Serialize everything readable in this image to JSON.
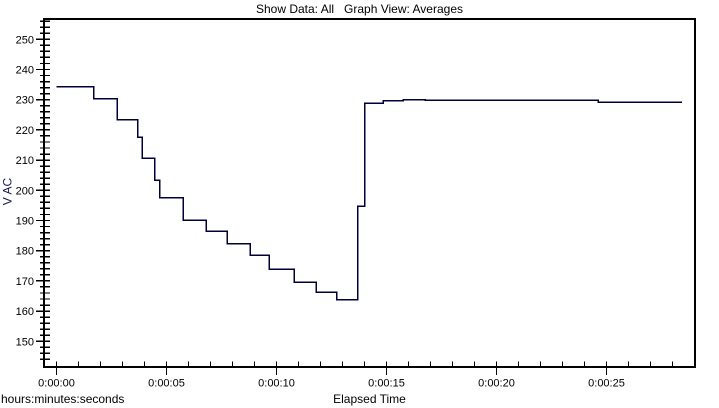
{
  "title": "Show Data: All   Graph View: Averages",
  "colors": {
    "background": "#ffffff",
    "frame": "#000000",
    "tick": "#000000",
    "tick_label": "#000000",
    "line": "#000038",
    "y_axis_label": "#181850"
  },
  "chart_data": {
    "type": "line",
    "line_style": "step-after",
    "title": "Show Data: All   Graph View: Averages",
    "ylabel": "V AC",
    "xlabel": "Elapsed Time",
    "x_unit_label": "hours:minutes:seconds",
    "grid": "off",
    "legend": "none",
    "y_tick_values": [
      250,
      240,
      230,
      220,
      210,
      200,
      190,
      180,
      170,
      160,
      150
    ],
    "y_tick_labels": [
      "250",
      "240",
      "230",
      "220",
      "210",
      "200",
      "190",
      "180",
      "170",
      "160",
      "150"
    ],
    "y_minor_tick_step": 2,
    "y_minor_tick_range": [
      144,
      256
    ],
    "ylim": [
      141.5,
      256.5
    ],
    "x_tick_seconds": [
      0,
      5,
      10,
      15,
      20,
      25
    ],
    "x_tick_labels": [
      "0:00:00",
      "0:00:05",
      "0:00:10",
      "0:00:15",
      "0:00:20",
      "0:00:25"
    ],
    "x_minor_tick_step_s": 1,
    "x_minor_tick_last_s": 28,
    "xlim_s": [
      -0.57,
      29.0
    ],
    "points_time_s_vs_vac": [
      [
        0.0,
        234.3
      ],
      [
        1.7,
        230.3
      ],
      [
        2.76,
        223.4
      ],
      [
        3.7,
        217.5
      ],
      [
        3.89,
        210.7
      ],
      [
        4.46,
        203.3
      ],
      [
        4.69,
        197.6
      ],
      [
        5.76,
        190.1
      ],
      [
        6.81,
        186.5
      ],
      [
        7.75,
        182.4
      ],
      [
        8.81,
        178.5
      ],
      [
        9.66,
        173.8
      ],
      [
        10.8,
        169.5
      ],
      [
        11.8,
        166.2
      ],
      [
        12.74,
        163.7
      ],
      [
        13.69,
        194.8
      ],
      [
        14.02,
        228.9
      ],
      [
        14.85,
        229.7
      ],
      [
        15.76,
        230.0
      ],
      [
        16.75,
        229.8
      ],
      [
        24.63,
        229.2
      ]
    ],
    "last_time_s": 28.43
  }
}
